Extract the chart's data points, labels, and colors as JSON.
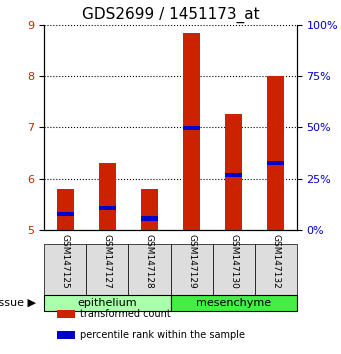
{
  "title": "GDS2699 / 1451173_at",
  "samples": [
    "GSM147125",
    "GSM147127",
    "GSM147128",
    "GSM147129",
    "GSM147130",
    "GSM147132"
  ],
  "bar_tops": [
    5.8,
    6.3,
    5.8,
    8.83,
    7.25,
    8.0
  ],
  "bar_base": 5.0,
  "percentile_values": [
    5.3,
    5.43,
    5.22,
    6.98,
    6.07,
    6.3
  ],
  "ylim": [
    5.0,
    9.0
  ],
  "yticks_left": [
    5,
    6,
    7,
    8,
    9
  ],
  "yticks_right": [
    0,
    25,
    50,
    75,
    100
  ],
  "ylim_right": [
    0,
    100
  ],
  "bar_color": "#cc2200",
  "percentile_color": "#0000cc",
  "bar_width": 0.4,
  "groups": [
    {
      "label": "epithelium",
      "samples": [
        0,
        1,
        2
      ],
      "color": "#aaffaa"
    },
    {
      "label": "mesenchyme",
      "samples": [
        3,
        4,
        5
      ],
      "color": "#44ee44"
    }
  ],
  "xlabel_tissue": "tissue",
  "legend_items": [
    {
      "label": "transformed count",
      "color": "#cc2200"
    },
    {
      "label": "percentile rank within the sample",
      "color": "#0000cc"
    }
  ],
  "background_color": "#ffffff",
  "grid_color": "#000000",
  "title_fontsize": 11,
  "tick_fontsize": 8,
  "label_fontsize": 8
}
